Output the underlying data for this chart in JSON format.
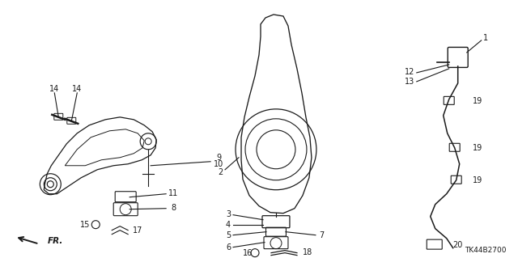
{
  "bg_color": "#ffffff",
  "line_color": "#1a1a1a",
  "diagram_code": "TK44B2700",
  "fr_label": "FR.",
  "label_fontsize": 7.0,
  "small_fontsize": 6.0
}
